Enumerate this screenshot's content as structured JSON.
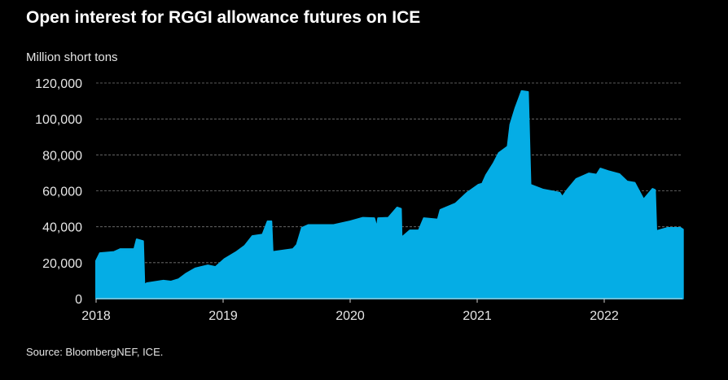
{
  "chart_data": {
    "type": "area",
    "title": "Open interest for RGGI allowance futures on ICE",
    "ylabel": "Million short tons",
    "xlabel": "",
    "source": "Source: BloombergNEF, ICE.",
    "color": "#05ade5",
    "ylim": [
      0,
      120000
    ],
    "xlim": [
      2018,
      2022.62
    ],
    "yticks": [
      0,
      20000,
      40000,
      60000,
      80000,
      100000,
      120000
    ],
    "ytick_labels": [
      "0",
      "20,000",
      "40,000",
      "60,000",
      "80,000",
      "100,000",
      "120,000"
    ],
    "xticks": [
      2018,
      2019,
      2020,
      2021,
      2022
    ],
    "xtick_labels": [
      "2018",
      "2019",
      "2020",
      "2021",
      "2022"
    ],
    "grid": true,
    "series": [
      {
        "name": "Open interest",
        "x": [
          2018.0,
          2018.03,
          2018.14,
          2018.19,
          2018.3,
          2018.32,
          2018.37,
          2018.38,
          2018.4,
          2018.53,
          2018.59,
          2018.65,
          2018.71,
          2018.78,
          2018.88,
          2018.94,
          2019.01,
          2019.1,
          2019.17,
          2019.23,
          2019.31,
          2019.35,
          2019.38,
          2019.39,
          2019.55,
          2019.58,
          2019.62,
          2019.67,
          2019.87,
          2020.0,
          2020.1,
          2020.19,
          2020.21,
          2020.22,
          2020.3,
          2020.37,
          2020.4,
          2020.405,
          2020.47,
          2020.54,
          2020.58,
          2020.69,
          2020.71,
          2020.83,
          2020.92,
          2021.01,
          2021.04,
          2021.07,
          2021.13,
          2021.17,
          2021.24,
          2021.26,
          2021.3,
          2021.35,
          2021.4,
          2021.42,
          2021.52,
          2021.65,
          2021.67,
          2021.71,
          2021.78,
          2021.88,
          2021.94,
          2021.97,
          2022.03,
          2022.12,
          2022.18,
          2022.24,
          2022.31,
          2022.38,
          2022.4,
          2022.41,
          2022.5,
          2022.6,
          2022.62
        ],
        "y": [
          21000,
          25300,
          26000,
          27600,
          27600,
          33000,
          32000,
          7700,
          8600,
          10000,
          9500,
          10800,
          14000,
          16800,
          18500,
          17600,
          22000,
          25800,
          29400,
          34800,
          35700,
          43000,
          43000,
          26000,
          27600,
          30000,
          39400,
          41000,
          41000,
          43000,
          45000,
          44800,
          39400,
          44800,
          45000,
          50700,
          50000,
          34000,
          38000,
          38000,
          44800,
          44000,
          49400,
          53000,
          58900,
          63400,
          64000,
          68800,
          75600,
          81000,
          84700,
          96900,
          106000,
          115500,
          115000,
          63400,
          60700,
          58900,
          56600,
          60700,
          66600,
          69700,
          69000,
          72400,
          71000,
          69300,
          65200,
          64500,
          55200,
          61100,
          60500,
          37600,
          39400,
          39400,
          38500
        ]
      }
    ]
  }
}
